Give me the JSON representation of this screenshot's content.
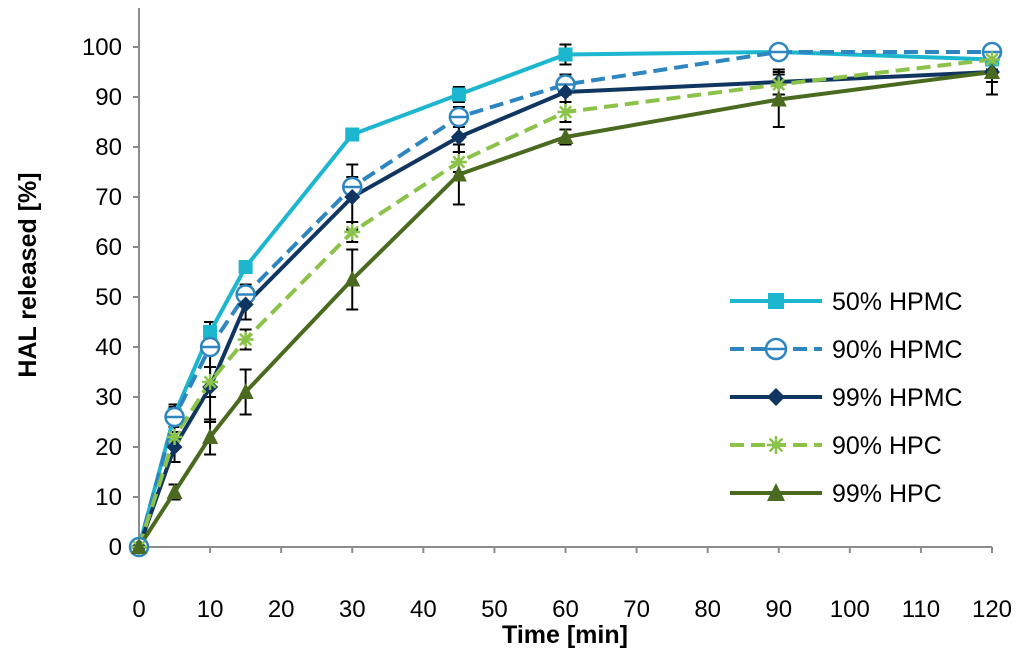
{
  "chart_data": {
    "type": "line",
    "xlabel": "Time [min]",
    "ylabel": "HAL released [%]",
    "xlim": [
      0,
      120
    ],
    "ylim": [
      0,
      100
    ],
    "xticks": [
      0,
      10,
      20,
      30,
      40,
      50,
      60,
      70,
      80,
      90,
      100,
      110,
      120
    ],
    "yticks": [
      0,
      10,
      20,
      30,
      40,
      50,
      60,
      70,
      80,
      90,
      100
    ],
    "grid": false,
    "legend_position": "bottom-right",
    "x": [
      0,
      5,
      10,
      15,
      30,
      45,
      60,
      90,
      120
    ],
    "series": [
      {
        "name": "50% HPMC",
        "color": "#1cb6cf",
        "dash": "solid",
        "marker": "square",
        "values": [
          0,
          26.5,
          43,
          56,
          82.5,
          90.5,
          98.5,
          99,
          97.5
        ],
        "errors": [
          0,
          2,
          2,
          1,
          1,
          1.5,
          2,
          1,
          1
        ]
      },
      {
        "name": "90% HPMC",
        "color": "#2e86c1",
        "dash": "dashed",
        "marker": "circle-bar",
        "values": [
          0,
          26,
          40,
          50.5,
          72,
          86,
          92.5,
          99,
          99
        ],
        "errors": [
          0,
          2,
          1.5,
          2,
          2,
          2,
          2,
          1,
          1
        ]
      },
      {
        "name": "99% HPMC",
        "color": "#0f3560",
        "dash": "solid",
        "marker": "diamond",
        "values": [
          0,
          20,
          32,
          48.5,
          70,
          82,
          91,
          93,
          95
        ],
        "errors": [
          0,
          3,
          7,
          3,
          6.5,
          3,
          2,
          2.5,
          2
        ]
      },
      {
        "name": "90% HPC",
        "color": "#8bc34a",
        "dash": "dashed",
        "marker": "asterisk",
        "values": [
          0,
          22,
          33,
          41.5,
          63,
          77,
          87,
          92.5,
          97.5
        ],
        "errors": [
          0,
          2,
          3,
          2,
          2,
          2,
          2,
          2,
          2
        ]
      },
      {
        "name": "99% HPC",
        "color": "#4a6b1f",
        "dash": "solid",
        "marker": "triangle",
        "values": [
          0,
          11,
          22,
          31,
          53.5,
          74.5,
          82,
          89.5,
          95
        ],
        "errors": [
          0,
          1.5,
          3.5,
          4.5,
          6,
          6,
          1.5,
          5.5,
          4.5
        ]
      }
    ]
  }
}
